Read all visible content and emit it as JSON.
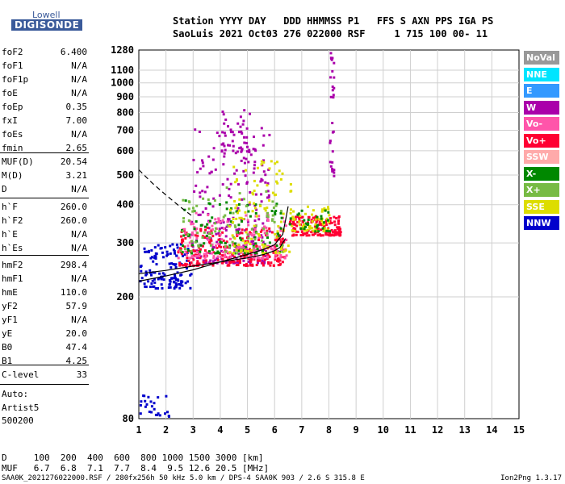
{
  "logo": {
    "line1": "Lowell",
    "line2": "DIGISONDE"
  },
  "header": {
    "row1": "Station YYYY DAY   DDD HHMMSS P1   FFS S AXN PPS IGA PS",
    "row2": "SaoLuis 2021 Oct03 276 022000 RSF     1 715 100 00- 11"
  },
  "params_group1": [
    {
      "label": "foF2",
      "value": "6.400"
    },
    {
      "label": "foF1",
      "value": "N/A"
    },
    {
      "label": "foF1p",
      "value": "N/A"
    },
    {
      "label": "foE",
      "value": "N/A"
    },
    {
      "label": "foEp",
      "value": "0.35"
    },
    {
      "label": "fxI",
      "value": "7.00"
    },
    {
      "label": "foEs",
      "value": "N/A"
    },
    {
      "label": "fmin",
      "value": "2.65"
    }
  ],
  "params_group2": [
    {
      "label": "MUF(D)",
      "value": "20.54"
    },
    {
      "label": "M(D)",
      "value": "3.21"
    },
    {
      "label": "D",
      "value": "N/A"
    }
  ],
  "params_group3": [
    {
      "label": "h`F",
      "value": "260.0"
    },
    {
      "label": "h`F2",
      "value": "260.0"
    },
    {
      "label": "h`E",
      "value": "N/A"
    },
    {
      "label": "h`Es",
      "value": "N/A"
    }
  ],
  "params_group4": [
    {
      "label": "hmF2",
      "value": "298.4"
    },
    {
      "label": "hmF1",
      "value": "N/A"
    },
    {
      "label": "hmE",
      "value": "110.0"
    },
    {
      "label": "yF2",
      "value": "57.9"
    },
    {
      "label": "yF1",
      "value": "N/A"
    },
    {
      "label": "yE",
      "value": "20.0"
    },
    {
      "label": "B0",
      "value": "47.4"
    },
    {
      "label": "B1",
      "value": "4.25"
    }
  ],
  "params_group5": [
    {
      "label": "C-level",
      "value": "33"
    }
  ],
  "scaling": {
    "line1": "Auto:",
    "line2": "Artist5",
    "line3": "500200"
  },
  "legend": [
    {
      "label": "NoVal",
      "color": "#999999"
    },
    {
      "label": "NNE",
      "color": "#00e5ff"
    },
    {
      "label": "E",
      "color": "#3399ff"
    },
    {
      "label": "W",
      "color": "#aa00aa"
    },
    {
      "label": "Vo-",
      "color": "#ff55aa"
    },
    {
      "label": "Vo+",
      "color": "#ff0033"
    },
    {
      "label": "SSW",
      "color": "#ffaaaa"
    },
    {
      "label": "X-",
      "color": "#008800"
    },
    {
      "label": "X+",
      "color": "#77bb44"
    },
    {
      "label": "SSE",
      "color": "#dddd00"
    },
    {
      "label": "NNW",
      "color": "#0000cc"
    }
  ],
  "muf_table": {
    "d_row": "D     100  200  400  600  800 1000 1500 3000 [km]",
    "muf_row": "MUF   6.7  6.8  7.1  7.7  8.4  9.5 12.6 20.5 [MHz]"
  },
  "footer": {
    "left": "SAA0K_2021276022000.RSF / 280fx256h 50 kHz 5.0 km / DPS-4 SAA0K 903 / 2.6 S 315.8 E",
    "right": "Ion2Png 1.3.17"
  },
  "chart_data": {
    "type": "scatter",
    "xlabel": "",
    "ylabel": "",
    "xlim": [
      1,
      15
    ],
    "ylim": [
      80,
      1280
    ],
    "y_scale": "log",
    "x_ticks": [
      1,
      2,
      3,
      4,
      5,
      6,
      7,
      8,
      9,
      10,
      11,
      12,
      13,
      14,
      15
    ],
    "y_ticks": [
      80,
      200,
      300,
      400,
      500,
      600,
      700,
      800,
      900,
      1000,
      1100,
      1280
    ],
    "grid": true,
    "trace_f2_lower": {
      "x": [
        1.0,
        2.0,
        3.0,
        4.0,
        5.0,
        5.6,
        6.0,
        6.2,
        6.3,
        6.4
      ],
      "y": [
        238,
        244,
        252,
        260,
        268,
        275,
        283,
        290,
        300,
        310
      ]
    },
    "trace_f2_upper": {
      "x": [
        1.0,
        2.0,
        3.0,
        4.0,
        5.0,
        5.6,
        6.0,
        6.3,
        6.4,
        6.5
      ],
      "y": [
        225,
        234,
        245,
        260,
        275,
        286,
        296,
        320,
        355,
        395
      ]
    },
    "trace_dashed": {
      "x": [
        1.0,
        1.5,
        2.0,
        2.5,
        3.0
      ],
      "y": [
        520,
        470,
        430,
        395,
        365
      ]
    },
    "echo_clusters": [
      {
        "color_key": "NNW",
        "x": [
          1.0,
          2.9
        ],
        "y": [
          215,
          300
        ],
        "count": 130
      },
      {
        "color_key": "W",
        "x": [
          2.9,
          5.8
        ],
        "y": [
          260,
          720
        ],
        "count": 230
      },
      {
        "color_key": "W",
        "x": [
          4.0,
          5.4
        ],
        "y": [
          600,
          850
        ],
        "count": 40
      },
      {
        "color_key": "Vo+",
        "x": [
          2.4,
          6.4
        ],
        "y": [
          255,
          340
        ],
        "count": 260
      },
      {
        "color_key": "Vo-",
        "x": [
          2.4,
          6.4
        ],
        "y": [
          270,
          380
        ],
        "count": 160
      },
      {
        "color_key": "X-",
        "x": [
          2.5,
          6.3
        ],
        "y": [
          280,
          420
        ],
        "count": 90
      },
      {
        "color_key": "X+",
        "x": [
          2.5,
          6.3
        ],
        "y": [
          280,
          460
        ],
        "count": 80
      },
      {
        "color_key": "SSE",
        "x": [
          4.3,
          6.6
        ],
        "y": [
          280,
          560
        ],
        "count": 100
      },
      {
        "color_key": "Vo+",
        "x": [
          6.5,
          8.4
        ],
        "y": [
          320,
          370
        ],
        "count": 150
      },
      {
        "color_key": "SSE",
        "x": [
          6.5,
          8.0
        ],
        "y": [
          330,
          400
        ],
        "count": 60
      },
      {
        "color_key": "X-",
        "x": [
          6.5,
          8.0
        ],
        "y": [
          330,
          390
        ],
        "count": 30
      },
      {
        "color_key": "NNW",
        "x": [
          1.0,
          2.1
        ],
        "y": [
          82,
          98
        ],
        "count": 25
      },
      {
        "color_key": "W",
        "x": [
          8.0,
          8.15
        ],
        "y": [
          500,
          1280
        ],
        "count": 30
      }
    ]
  }
}
